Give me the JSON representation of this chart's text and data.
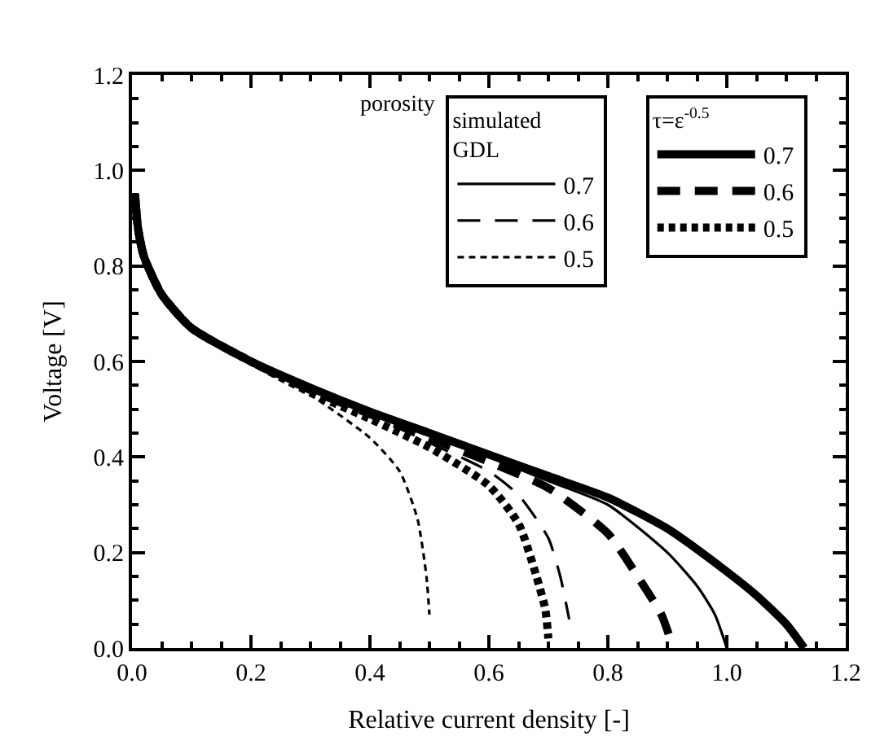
{
  "chart_data": {
    "type": "line",
    "xlabel": "Relative current density [-]",
    "ylabel": "Voltage [V]",
    "legend_title": "porosity",
    "annotations": [
      "simulated\nGDL",
      "τ=ε$^{-0.5}$"
    ],
    "xlim": [
      0,
      1.2
    ],
    "ylim": [
      0,
      1.2
    ],
    "xticks": [
      {
        "value": 0,
        "label": "0.0"
      },
      0.2,
      0.4,
      0.6,
      0.8,
      {
        "value": 1,
        "label": "1.0"
      },
      1.2
    ],
    "yticks": [
      {
        "value": 0,
        "label": "0.0"
      },
      0.2,
      0.4,
      0.6,
      0.8,
      {
        "value": 1,
        "label": "1.0"
      },
      1.2
    ],
    "legend": "top right",
    "marker": "none",
    "series": [
      {
        "name": "0.7",
        "color": "#000000",
        "line_style": "solid",
        "x": [
          0.005,
          0.01,
          0.02,
          0.05,
          0.1,
          0.2,
          0.3,
          0.4,
          0.5,
          0.6,
          0.7,
          0.8,
          0.9,
          0.95,
          0.98,
          1.0
        ],
        "values": [
          0.95,
          0.88,
          0.82,
          0.74,
          0.67,
          0.6,
          0.545,
          0.495,
          0.45,
          0.4,
          0.35,
          0.3,
          0.2,
          0.13,
          0.07,
          0.0
        ]
      },
      {
        "name": "0.6",
        "color": "#000000",
        "line_style": "dashed",
        "x": [
          0.005,
          0.01,
          0.02,
          0.05,
          0.1,
          0.2,
          0.3,
          0.4,
          0.5,
          0.6,
          0.65,
          0.7,
          0.72,
          0.735
        ],
        "values": [
          0.95,
          0.88,
          0.82,
          0.74,
          0.67,
          0.6,
          0.54,
          0.49,
          0.43,
          0.37,
          0.32,
          0.23,
          0.15,
          0.06
        ]
      },
      {
        "name": "0.5",
        "color": "#000000",
        "line_style": "dotted",
        "x": [
          0.005,
          0.01,
          0.02,
          0.05,
          0.1,
          0.2,
          0.3,
          0.4,
          0.45,
          0.48,
          0.495,
          0.5
        ],
        "values": [
          0.95,
          0.88,
          0.82,
          0.74,
          0.67,
          0.6,
          0.53,
          0.44,
          0.37,
          0.27,
          0.15,
          0.07
        ]
      },
      {
        "name": "0.7",
        "color": "#000000",
        "line_style": "solid",
        "x": [
          0.005,
          0.01,
          0.02,
          0.05,
          0.1,
          0.2,
          0.3,
          0.4,
          0.5,
          0.6,
          0.7,
          0.8,
          0.9,
          1.0,
          1.05,
          1.1,
          1.13
        ],
        "values": [
          0.95,
          0.88,
          0.82,
          0.74,
          0.67,
          0.6,
          0.545,
          0.495,
          0.45,
          0.405,
          0.36,
          0.315,
          0.25,
          0.16,
          0.11,
          0.05,
          0.0
        ]
      },
      {
        "name": "0.6",
        "color": "#000000",
        "line_style": "dashed",
        "x": [
          0.005,
          0.01,
          0.02,
          0.05,
          0.1,
          0.2,
          0.3,
          0.4,
          0.5,
          0.6,
          0.7,
          0.8,
          0.85,
          0.89,
          0.91
        ],
        "values": [
          0.95,
          0.88,
          0.82,
          0.74,
          0.67,
          0.6,
          0.54,
          0.49,
          0.44,
          0.39,
          0.335,
          0.24,
          0.15,
          0.07,
          0.0
        ]
      },
      {
        "name": "0.5",
        "color": "#000000",
        "line_style": "dotted",
        "x": [
          0.005,
          0.01,
          0.02,
          0.05,
          0.1,
          0.2,
          0.3,
          0.4,
          0.5,
          0.6,
          0.65,
          0.68,
          0.695,
          0.7
        ],
        "values": [
          0.95,
          0.88,
          0.82,
          0.74,
          0.67,
          0.6,
          0.535,
          0.48,
          0.42,
          0.34,
          0.26,
          0.15,
          0.08,
          0.02
        ]
      }
    ]
  }
}
